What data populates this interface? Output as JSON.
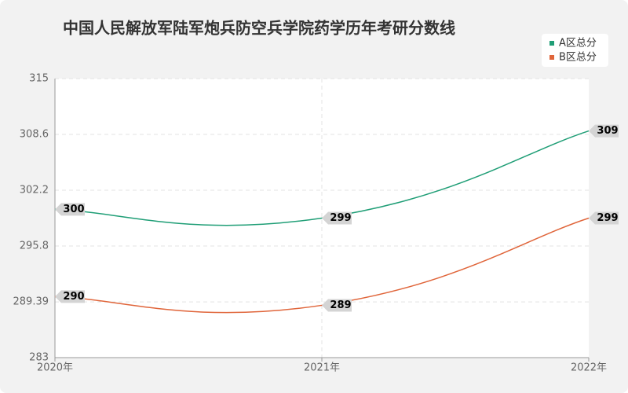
{
  "chart_data": {
    "type": "line",
    "title": "中国人民解放军陆军炮兵防空兵学院药学历年考研分数线",
    "categories": [
      "2020年",
      "2021年",
      "2022年"
    ],
    "series": [
      {
        "name": "A区总分",
        "color": "#1f9e76",
        "values": [
          300,
          299,
          309
        ]
      },
      {
        "name": "B区总分",
        "color": "#e0653a",
        "values": [
          290,
          289,
          299
        ]
      }
    ],
    "ylim": [
      283,
      315
    ],
    "yticks": [
      283,
      289.39,
      295.8,
      302.2,
      308.6,
      315
    ],
    "grid": true,
    "smooth": true,
    "legend": "top-right"
  }
}
